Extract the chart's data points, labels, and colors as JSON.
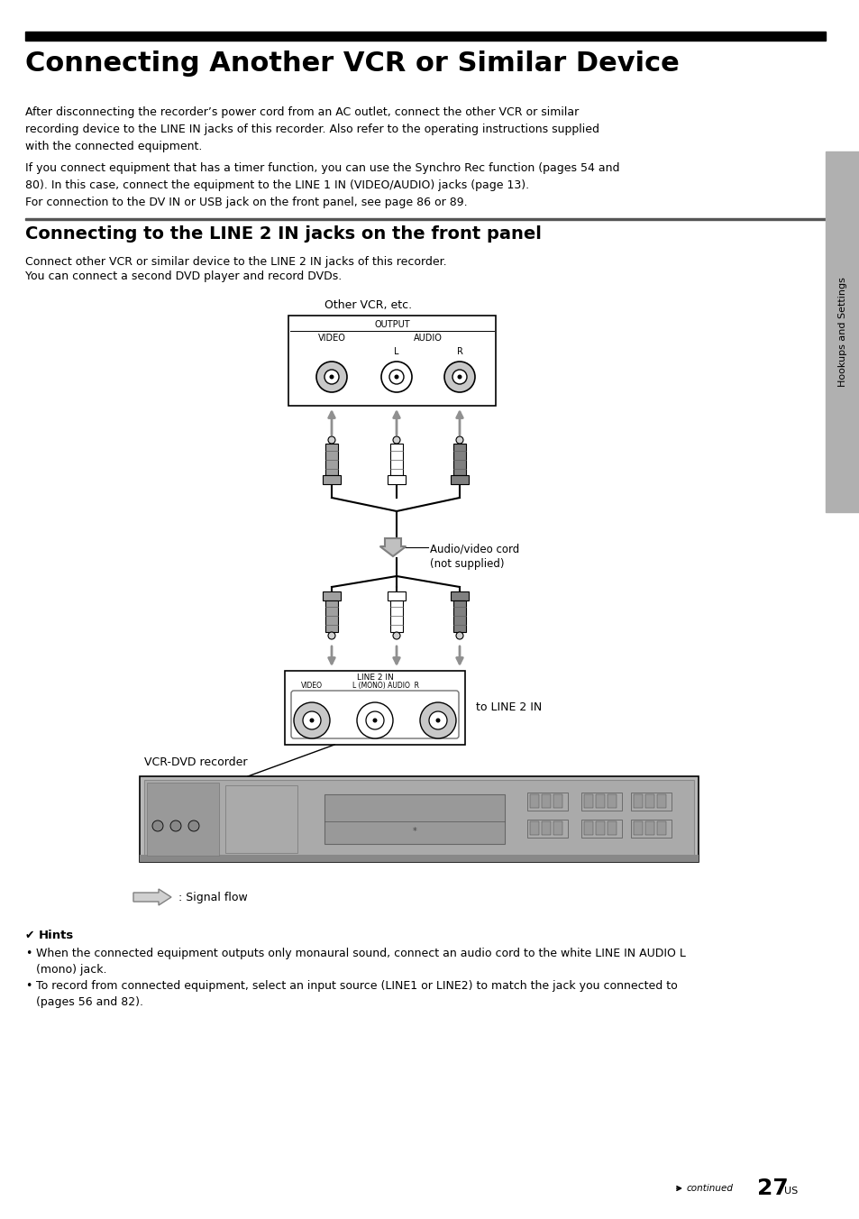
{
  "page_bg": "#ffffff",
  "title_bar_color": "#000000",
  "main_title": "Connecting Another VCR or Similar Device",
  "body_text_1": "After disconnecting the recorder’s power cord from an AC outlet, connect the other VCR or similar\nrecording device to the LINE IN jacks of this recorder. Also refer to the operating instructions supplied\nwith the connected equipment.",
  "body_text_2": "If you connect equipment that has a timer function, you can use the Synchro Rec function (pages 54 and\n80). In this case, connect the equipment to the LINE 1 IN (VIDEO/AUDIO) jacks (page 13).\nFor connection to the DV IN or USB jack on the front panel, see page 86 or 89.",
  "section_title": "Connecting to the LINE 2 IN jacks on the front panel",
  "section_body_1": "Connect other VCR or similar device to the LINE 2 IN jacks of this recorder.",
  "section_body_2": "You can connect a second DVD player and record DVDs.",
  "label_other_vcr": "Other VCR, etc.",
  "label_output": "OUTPUT",
  "label_video": "VIDEO",
  "label_audio": "AUDIO",
  "label_L": "L",
  "label_R": "R",
  "label_audio_video_cord": "Audio/video cord\n(not supplied)",
  "label_line2in_header": "LINE 2 IN",
  "label_video2": "VIDEO",
  "label_lmono": "L (MONO) AUDIO  R",
  "label_to_line2in": "to LINE 2 IN",
  "label_vcr_dvd": "VCR-DVD recorder",
  "label_signal_flow": ": Signal flow",
  "hints_title": "Hints",
  "hint1": "When the connected equipment outputs only monaural sound, connect an audio cord to the white LINE IN AUDIO L\n(mono) jack.",
  "hint2": "To record from connected equipment, select an input source (LINE1 or LINE2) to match the jack you connected to\n(pages 56 and 82).",
  "continued_text": "continued",
  "page_number": "27",
  "page_suffix": "US",
  "side_tab_text": "Hookups and Settings",
  "side_tab_bg": "#b0b0b0"
}
